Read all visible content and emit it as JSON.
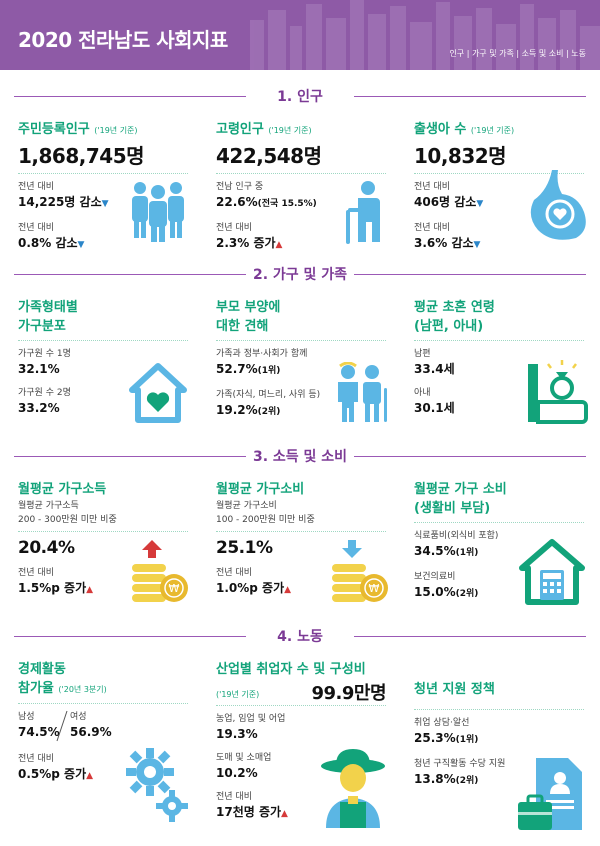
{
  "header": {
    "title": "2020 전라남도 사회지표",
    "nav": "인구 | 가구 및 가족 | 소득 및 소비 | 노동"
  },
  "sections": {
    "s1": "1. 인구",
    "s2": "2. 가구 및 가족",
    "s3": "3. 소득 및 소비",
    "s4": "4. 노동"
  },
  "population": {
    "resident": {
      "title": "주민등록인구",
      "note": "('19년 기준)",
      "value": "1,868,745명",
      "l1": "전년 대비",
      "v1": "14,225명 감소",
      "l2": "전년 대비",
      "v2": "0.8% 감소"
    },
    "elderly": {
      "title": "고령인구",
      "note": "('19년 기준)",
      "value": "422,548명",
      "l1": "전남 인구 중",
      "v1": "22.6%",
      "v1b": "(전국 15.5%)",
      "l2": "전년 대비",
      "v2": "2.3% 증가"
    },
    "births": {
      "title": "출생아 수",
      "note": "('19년 기준)",
      "value": "10,832명",
      "l1": "전년 대비",
      "v1": "406명 감소",
      "l2": "전년 대비",
      "v2": "3.6% 감소"
    }
  },
  "household": {
    "types": {
      "title1": "가족형태별",
      "title2": "가구분포",
      "l1": "가구원 수 1명",
      "v1": "32.1%",
      "l2": "가구원 수 2명",
      "v2": "33.2%"
    },
    "parents": {
      "title1": "부모 부양에",
      "title2": "대한 견해",
      "l1": "가족과 정부·사회가 함께",
      "v1": "52.7%",
      "v1r": "(1위)",
      "l2": "가족(자식, 며느리, 사위 등)",
      "v2": "19.2%",
      "v2r": "(2위)"
    },
    "marriage": {
      "title1": "평균 초혼 연령",
      "title2": "(남편, 아내)",
      "l1": "남편",
      "v1": "33.4세",
      "l2": "아내",
      "v2": "30.1세"
    }
  },
  "income": {
    "inc": {
      "title": "월평균 가구소득",
      "d1": "월평균 가구소득",
      "d2": "200 - 300만원 미만 비중",
      "value": "20.4%",
      "l1": "전년 대비",
      "v1": "1.5%p 증가"
    },
    "cons": {
      "title": "월평균 가구소비",
      "d1": "월평균 가구소비",
      "d2": "100 - 200만원 미만 비중",
      "value": "25.1%",
      "l1": "전년 대비",
      "v1": "1.0%p 증가"
    },
    "cost": {
      "title1": "월평균 가구 소비",
      "title2": "(생활비 부담)",
      "l1": "식료품비(외식비 포함)",
      "v1": "34.5%",
      "v1r": "(1위)",
      "l2": "보건의료비",
      "v2": "15.0%",
      "v2r": "(2위)"
    }
  },
  "labor": {
    "part": {
      "title1": "경제활동",
      "title2": "참가율",
      "note": "('20년 3분기)",
      "male_l": "남성",
      "female_l": "여성",
      "male_v": "74.5%",
      "female_v": "56.9%",
      "l1": "전년 대비",
      "v1": "0.5%p 증가"
    },
    "industry": {
      "title": "산업별 취업자 수 및 구성비",
      "note": "('19년 기준)",
      "total": "99.9만명",
      "l1": "농업, 임업 및 어업",
      "v1": "19.3%",
      "l2": "도매 및 소매업",
      "v2": "10.2%",
      "l3": "전년 대비",
      "v3": "17천명 증가"
    },
    "youth": {
      "title": "청년 지원 정책",
      "l1": "취업 상담·알선",
      "v1": "25.3%",
      "v1r": "(1위)",
      "l2": "청년 구직활동 수당 지원",
      "v2": "13.8%",
      "v2r": "(2위)"
    }
  },
  "arrows": {
    "down": "▼",
    "up": "▲"
  },
  "colors": {
    "purple": "#8e5aa6",
    "green": "#12a37a",
    "blue": "#5bb6e4",
    "yellow": "#f2d24b",
    "red": "#d63a3a"
  }
}
